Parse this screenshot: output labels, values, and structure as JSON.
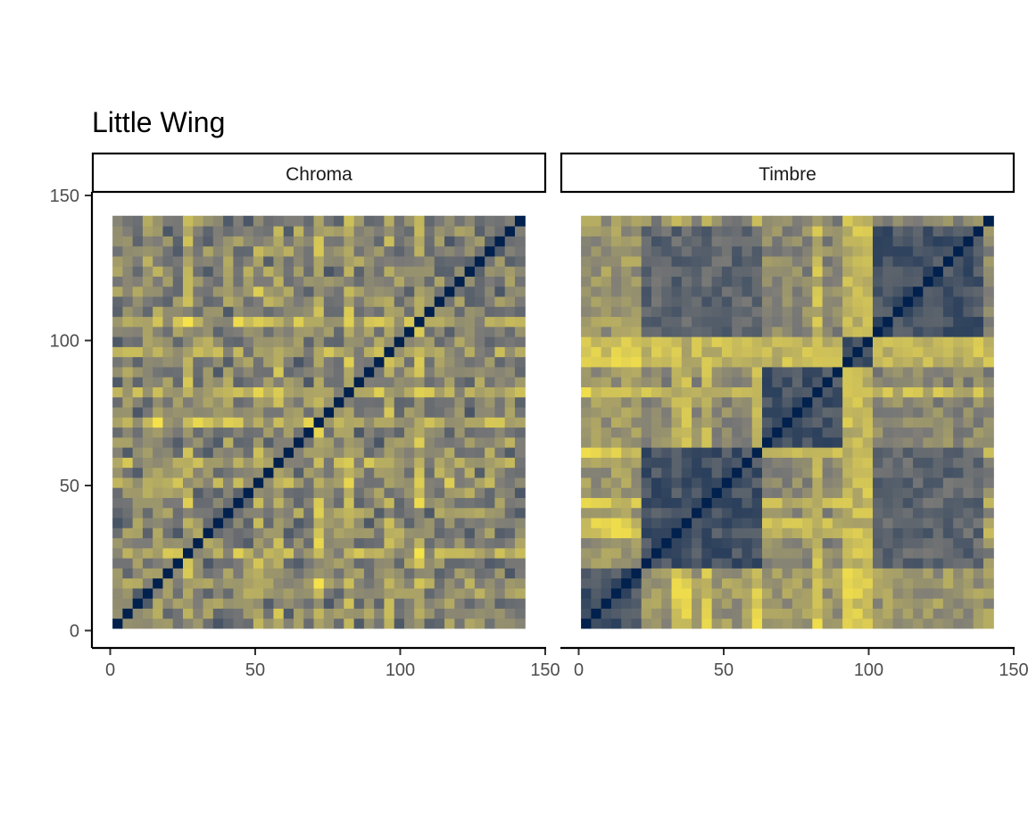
{
  "chart_data": {
    "type": "heatmap",
    "title": "Little Wing",
    "colormap": {
      "low": "#00204d",
      "mid": "#7c7b78",
      "high": "#ffea46"
    },
    "panels": [
      {
        "name": "Chroma",
        "x_ticks": [
          "0",
          "50",
          "100",
          "150"
        ],
        "y_ticks": [
          "0",
          "50",
          "100",
          "150"
        ],
        "xlim": [
          0,
          150
        ],
        "ylim": [
          0,
          150
        ],
        "extent": [
          0.8,
          143
        ],
        "n_cells": 41,
        "pattern": "diffuse",
        "bright_columns": [
          20,
          23,
          30
        ],
        "bright_rows": [
          4,
          7,
          14,
          16,
          27
        ]
      },
      {
        "name": "Timbre",
        "x_ticks": [
          "0",
          "50",
          "100",
          "150"
        ],
        "y_ticks": [
          "0",
          "50",
          "100",
          "150"
        ],
        "xlim": [
          0,
          150
        ],
        "ylim": [
          0,
          150
        ],
        "extent": [
          0.8,
          143
        ],
        "n_cells": 41,
        "pattern": "block",
        "boundaries": [
          0,
          6,
          18,
          26,
          29,
          40,
          41
        ],
        "diagonal_blocks": [
          [
            0,
            6
          ],
          [
            6,
            18
          ],
          [
            18,
            29
          ],
          [
            29,
            41
          ]
        ]
      }
    ]
  }
}
